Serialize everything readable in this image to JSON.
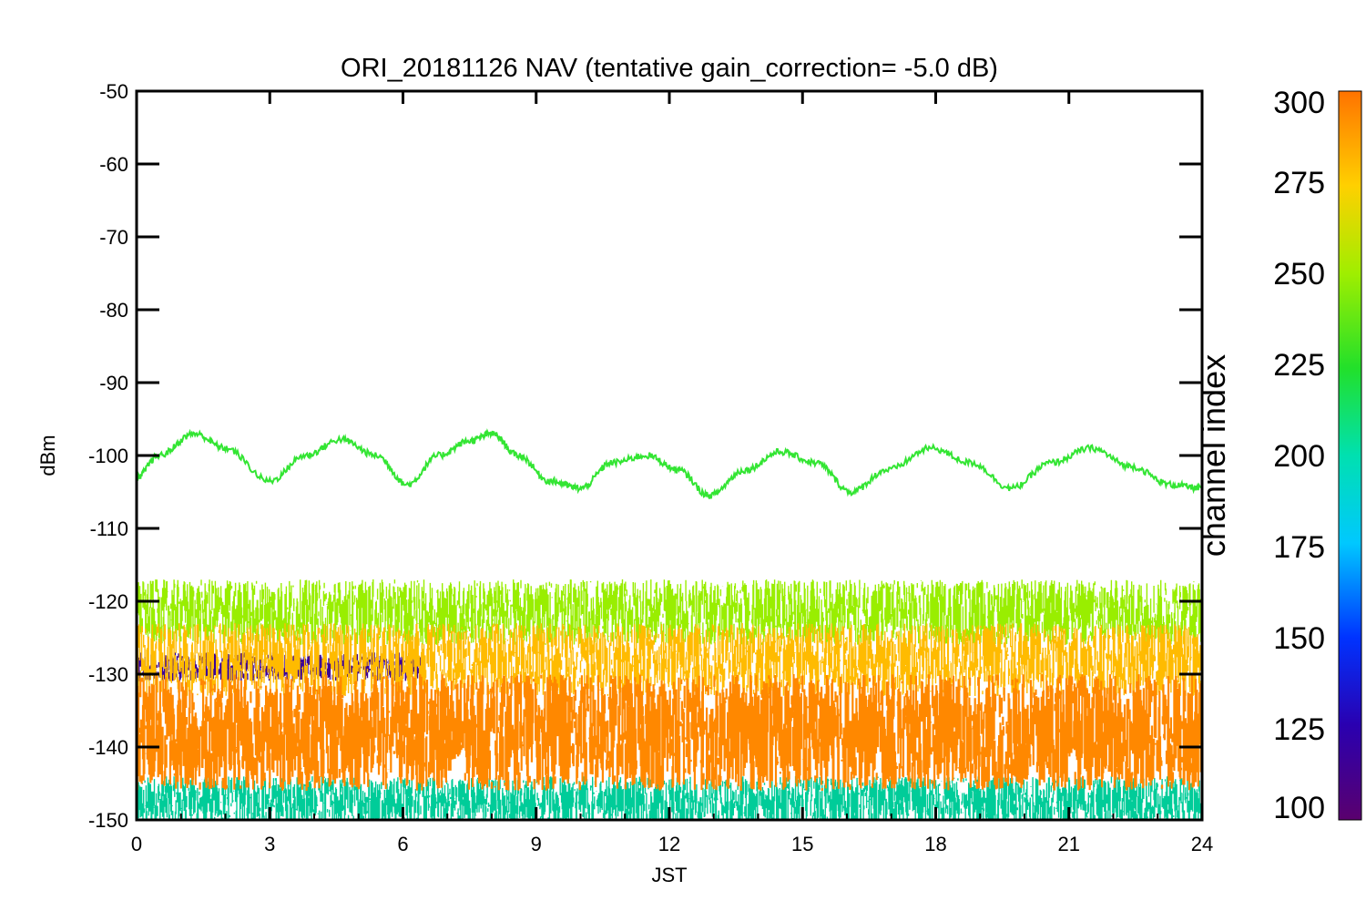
{
  "chart_data": {
    "type": "line",
    "title": "ORI_20181126 NAV (tentative gain_correction= -5.0 dB)",
    "xlabel": "JST",
    "ylabel": "dBm",
    "xlim": [
      0,
      24
    ],
    "ylim": [
      -150,
      -50
    ],
    "x_ticks": [
      "0",
      "3",
      "6",
      "9",
      "12",
      "15",
      "18",
      "21",
      "24"
    ],
    "y_ticks": [
      "-50",
      "-60",
      "-70",
      "-80",
      "-90",
      "-100",
      "-110",
      "-120",
      "-130",
      "-140",
      "-150"
    ],
    "colorbar": {
      "label": "channel index",
      "range": [
        100,
        300
      ],
      "ticks": [
        "300",
        "275",
        "250",
        "225",
        "200",
        "175",
        "150",
        "125",
        "100"
      ]
    },
    "series": [
      {
        "channel": 240,
        "color": "#33e533",
        "x": [
          0,
          0.5,
          1.3,
          2,
          3,
          3.8,
          4.6,
          5.4,
          6.1,
          6.8,
          7.5,
          8.0,
          8.6,
          9.3,
          10.0,
          10.7,
          11.5,
          12.2,
          12.9,
          13.7,
          14.5,
          15.3,
          16.1,
          16.9,
          17.9,
          18.8,
          19.7,
          20.6,
          21.5,
          22.4,
          23.3,
          24
        ],
        "y": [
          -103,
          -100,
          -97,
          -99,
          -103.5,
          -100,
          -97.8,
          -100,
          -104,
          -100,
          -98,
          -97,
          -100,
          -103.5,
          -104.5,
          -101,
          -100,
          -102,
          -105.5,
          -102,
          -99.5,
          -101,
          -105,
          -102,
          -99,
          -101,
          -104.5,
          -101,
          -99,
          -101.5,
          -104,
          -104.5
        ]
      },
      {
        "channel": 260,
        "color": "#99ee00",
        "band": [
          -126,
          -117
        ],
        "x_range": [
          0,
          24
        ]
      },
      {
        "channel": 120,
        "color": "#3a0098",
        "band": [
          -131,
          -127
        ],
        "x_range": [
          0,
          6.5
        ]
      },
      {
        "channel": 285,
        "color": "#ffbb00",
        "band": [
          -133,
          -123
        ],
        "x_range": [
          0,
          24
        ]
      },
      {
        "channel": 295,
        "color": "#ff8800",
        "band": [
          -146,
          -130
        ],
        "x_range": [
          0,
          24
        ]
      },
      {
        "channel": 190,
        "color": "#00cc99",
        "band": [
          -151,
          -144
        ],
        "x_range": [
          0,
          24
        ]
      }
    ]
  }
}
